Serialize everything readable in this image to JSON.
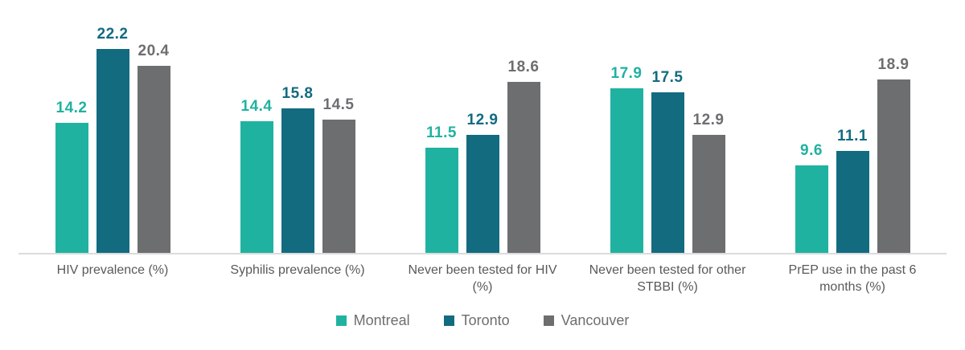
{
  "chart_data": {
    "type": "bar",
    "title": "",
    "xlabel": "",
    "ylabel": "",
    "ylim": [
      0,
      25
    ],
    "grid": false,
    "value_labels": true,
    "legend_position": "bottom",
    "axis_baseline_color": "#DBDBDB",
    "category_label_color": "#58595B",
    "legend_label_color": "#6D6E71",
    "categories": [
      "HIV prevalence (%)",
      "Syphilis prevalence (%)",
      "Never been tested for HIV (%)",
      "Never been tested for other STBBI (%)",
      "PrEP use in the past 6 months (%)"
    ],
    "series": [
      {
        "name": "Montreal",
        "color": "#20B2A1",
        "values": [
          14.2,
          14.4,
          11.5,
          17.9,
          9.6
        ]
      },
      {
        "name": "Toronto",
        "color": "#136B80",
        "values": [
          22.2,
          15.8,
          12.9,
          17.5,
          11.1
        ]
      },
      {
        "name": "Vancouver",
        "color": "#6D6E70",
        "values": [
          20.4,
          14.5,
          18.6,
          12.9,
          18.9
        ]
      }
    ]
  }
}
